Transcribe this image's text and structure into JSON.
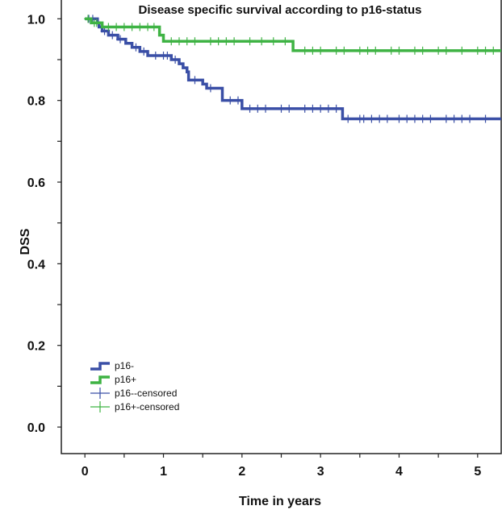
{
  "chart_data": {
    "type": "line",
    "subtype": "kaplan-meier",
    "title": "Disease specific survival according to p16-status",
    "xlabel": "Time in years",
    "ylabel": "DSS",
    "xlim": [
      -0.3,
      5.3
    ],
    "ylim": [
      -0.065,
      1.05
    ],
    "xticks": [
      0,
      1,
      2,
      3,
      4,
      5
    ],
    "xtick_labels": [
      "0",
      "1",
      "2",
      "3",
      "4",
      "5"
    ],
    "yticks": [
      0.0,
      0.2,
      0.4,
      0.6,
      0.8,
      1.0
    ],
    "ytick_labels": [
      "0.0",
      "0.2",
      "0.4",
      "0.6",
      "0.8",
      "1.0"
    ],
    "legend_position": "bottom-left",
    "series": [
      {
        "name": "p16-",
        "color": "#3a4fa6",
        "x": [
          0,
          0.16,
          0.18,
          0.22,
          0.3,
          0.42,
          0.52,
          0.6,
          0.7,
          0.8,
          1.1,
          1.2,
          1.25,
          1.3,
          1.32,
          1.5,
          1.55,
          1.75,
          2.0,
          3.28,
          5.3
        ],
        "y": [
          1.0,
          0.99,
          0.98,
          0.97,
          0.96,
          0.95,
          0.94,
          0.93,
          0.92,
          0.91,
          0.9,
          0.89,
          0.88,
          0.87,
          0.85,
          0.84,
          0.83,
          0.8,
          0.78,
          0.755,
          0.755
        ],
        "censored": [
          [
            0.05,
            1.0
          ],
          [
            0.1,
            1.0
          ],
          [
            0.17,
            0.99
          ],
          [
            0.25,
            0.97
          ],
          [
            0.35,
            0.96
          ],
          [
            0.45,
            0.95
          ],
          [
            0.65,
            0.93
          ],
          [
            0.75,
            0.92
          ],
          [
            0.9,
            0.91
          ],
          [
            1.0,
            0.91
          ],
          [
            1.05,
            0.91
          ],
          [
            1.15,
            0.9
          ],
          [
            1.4,
            0.85
          ],
          [
            1.6,
            0.83
          ],
          [
            1.85,
            0.8
          ],
          [
            1.95,
            0.8
          ],
          [
            2.1,
            0.78
          ],
          [
            2.2,
            0.78
          ],
          [
            2.3,
            0.78
          ],
          [
            2.5,
            0.78
          ],
          [
            2.6,
            0.78
          ],
          [
            2.8,
            0.78
          ],
          [
            2.9,
            0.78
          ],
          [
            3.0,
            0.78
          ],
          [
            3.1,
            0.78
          ],
          [
            3.2,
            0.78
          ],
          [
            3.35,
            0.755
          ],
          [
            3.5,
            0.755
          ],
          [
            3.55,
            0.755
          ],
          [
            3.65,
            0.755
          ],
          [
            3.75,
            0.755
          ],
          [
            3.85,
            0.755
          ],
          [
            4.0,
            0.755
          ],
          [
            4.1,
            0.755
          ],
          [
            4.2,
            0.755
          ],
          [
            4.3,
            0.755
          ],
          [
            4.4,
            0.755
          ],
          [
            4.6,
            0.755
          ],
          [
            4.7,
            0.755
          ],
          [
            4.8,
            0.755
          ],
          [
            4.9,
            0.755
          ],
          [
            5.1,
            0.755
          ]
        ]
      },
      {
        "name": "p16+",
        "color": "#3fb344",
        "x": [
          0,
          0.08,
          0.22,
          0.95,
          1.0,
          2.65,
          5.3
        ],
        "y": [
          1.0,
          0.99,
          0.98,
          0.96,
          0.945,
          0.922,
          0.922
        ],
        "censored": [
          [
            0.04,
            1.0
          ],
          [
            0.12,
            0.99
          ],
          [
            0.15,
            0.99
          ],
          [
            0.3,
            0.98
          ],
          [
            0.4,
            0.98
          ],
          [
            0.5,
            0.98
          ],
          [
            0.6,
            0.98
          ],
          [
            0.7,
            0.98
          ],
          [
            0.8,
            0.98
          ],
          [
            0.88,
            0.98
          ],
          [
            1.1,
            0.945
          ],
          [
            1.2,
            0.945
          ],
          [
            1.3,
            0.945
          ],
          [
            1.4,
            0.945
          ],
          [
            1.6,
            0.945
          ],
          [
            1.7,
            0.945
          ],
          [
            1.8,
            0.945
          ],
          [
            1.9,
            0.945
          ],
          [
            2.1,
            0.945
          ],
          [
            2.25,
            0.945
          ],
          [
            2.4,
            0.945
          ],
          [
            2.55,
            0.945
          ],
          [
            2.8,
            0.922
          ],
          [
            2.9,
            0.922
          ],
          [
            3.0,
            0.922
          ],
          [
            3.2,
            0.922
          ],
          [
            3.3,
            0.922
          ],
          [
            3.5,
            0.922
          ],
          [
            3.6,
            0.922
          ],
          [
            3.7,
            0.922
          ],
          [
            3.9,
            0.922
          ],
          [
            4.0,
            0.922
          ],
          [
            4.2,
            0.922
          ],
          [
            4.3,
            0.922
          ],
          [
            4.5,
            0.922
          ],
          [
            4.6,
            0.922
          ],
          [
            4.8,
            0.922
          ],
          [
            5.0,
            0.922
          ],
          [
            5.1,
            0.922
          ],
          [
            5.2,
            0.922
          ]
        ]
      }
    ],
    "legend": [
      {
        "label": "p16-",
        "kind": "line",
        "color": "#3a4fa6"
      },
      {
        "label": "p16+",
        "kind": "line",
        "color": "#3fb344"
      },
      {
        "label": "p16--censored",
        "kind": "marker",
        "color": "#3a4fa6"
      },
      {
        "label": "p16+-censored",
        "kind": "marker",
        "color": "#3fb344"
      }
    ]
  }
}
